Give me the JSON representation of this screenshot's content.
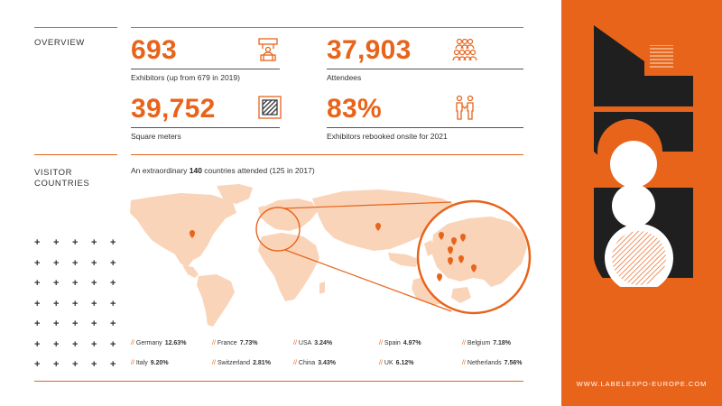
{
  "overview": {
    "label": "OVERVIEW",
    "stats": [
      {
        "value": "693",
        "caption": "Exhibitors (up from 679 in 2019)",
        "icon": "exhibitor-stand-icon"
      },
      {
        "value": "37,903",
        "caption": "Attendees",
        "icon": "people-group-icon"
      },
      {
        "value": "39,752",
        "caption": "Square meters",
        "icon": "floor-area-icon"
      },
      {
        "value": "83%",
        "caption": "Exhibitors rebooked onsite for 2021",
        "icon": "handshake-people-icon"
      }
    ]
  },
  "visitors": {
    "label_line1": "VISITOR",
    "label_line2": "COUNTRIES",
    "intro_before": "An extraordinary ",
    "intro_bold": "140",
    "intro_after": " countries attended (125 in 2017)",
    "countries": [
      {
        "name": "Germany",
        "pct": "12.63%"
      },
      {
        "name": "France",
        "pct": "7.73%"
      },
      {
        "name": "USA",
        "pct": "3.24%"
      },
      {
        "name": "Spain",
        "pct": "4.97%"
      },
      {
        "name": "Belgium",
        "pct": "7.18%"
      },
      {
        "name": "Italy",
        "pct": "9.20%"
      },
      {
        "name": "Switzerland",
        "pct": "2.81%"
      },
      {
        "name": "China",
        "pct": "3.43%"
      },
      {
        "name": "UK",
        "pct": "6.12%"
      },
      {
        "name": "Netherlands",
        "pct": "7.56%"
      }
    ],
    "separator": "//"
  },
  "panel": {
    "url": "WWW.LABELEXPO-EUROPE.COM",
    "color": "#e8641b",
    "dark": "#1f1f1f"
  }
}
